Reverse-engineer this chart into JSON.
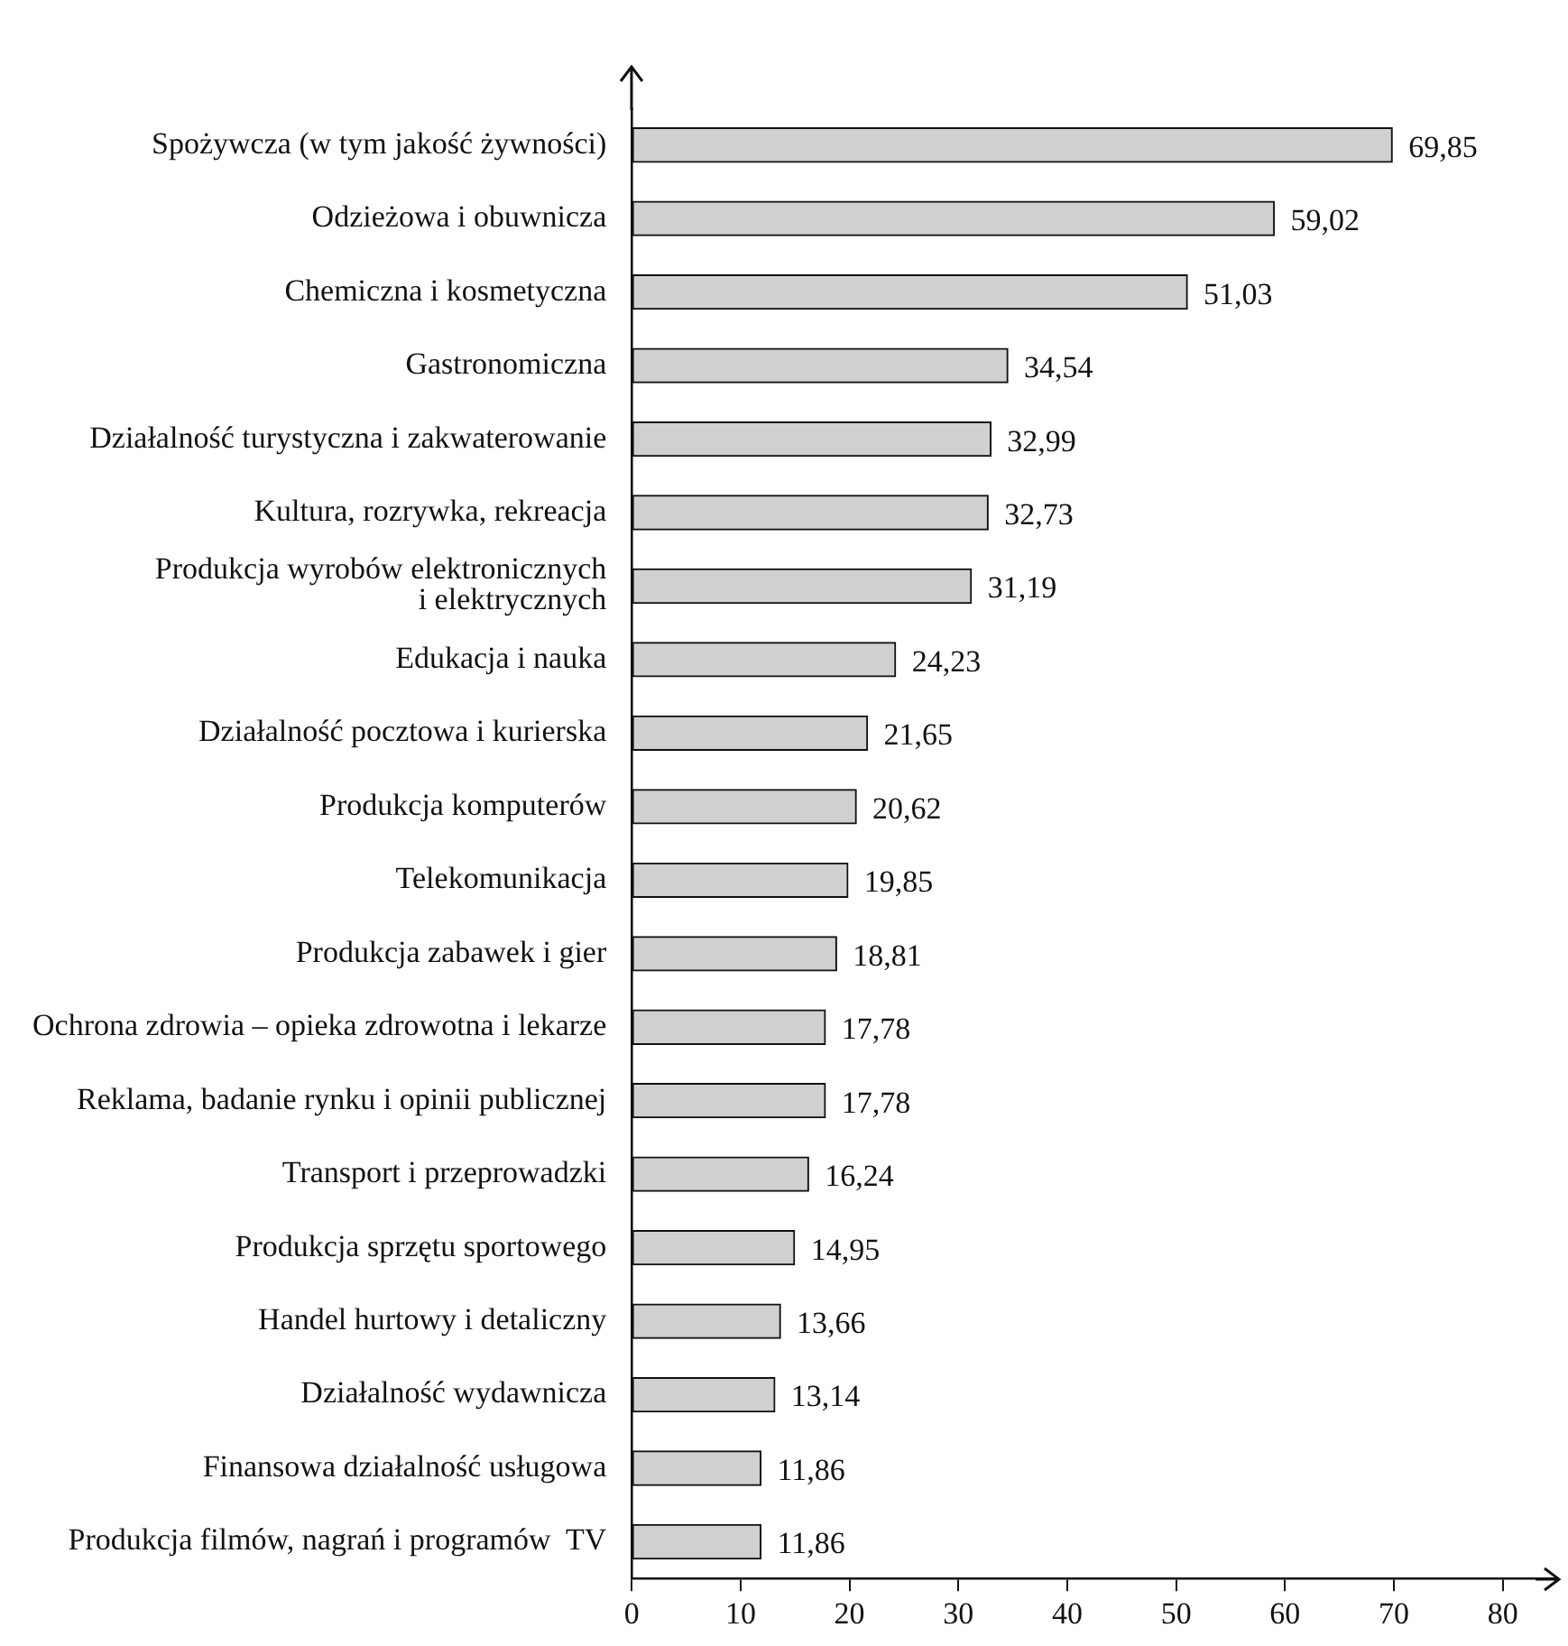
{
  "chart_data": {
    "type": "bar",
    "orientation": "horizontal",
    "categories": [
      "Spożywcza (w tym jakość żywności)",
      "Odzieżowa i obuwnicza",
      "Chemiczna i kosmetyczna",
      "Gastronomiczna",
      "Działalność turystyczna i zakwaterowanie",
      "Kultura, rozrywka, rekreacja",
      "Produkcja wyrobów elektronicznych\ni elektrycznych",
      "Edukacja i nauka",
      "Działalność pocztowa i kurierska",
      "Produkcja komputerów",
      "Telekomunikacja",
      "Produkcja zabawek i gier",
      "Ochrona zdrowia – opieka zdrowotna i lekarze",
      "Reklama, badanie rynku i opinii publicznej",
      "Transport i przeprowadzki",
      "Produkcja sprzętu sportowego",
      "Handel hurtowy i detaliczny",
      "Działalność wydawnicza",
      "Finansowa działalność usługowa",
      "Produkcja filmów, nagrań i programów  TV"
    ],
    "values": [
      69.85,
      59.02,
      51.03,
      34.54,
      32.99,
      32.73,
      31.19,
      24.23,
      21.65,
      20.62,
      19.85,
      18.81,
      17.78,
      17.78,
      16.24,
      14.95,
      13.66,
      13.14,
      11.86,
      11.86
    ],
    "value_labels": [
      "69,85",
      "59,02",
      "51,03",
      "34,54",
      "32,99",
      "32,73",
      "31,19",
      "24,23",
      "21,65",
      "20,62",
      "19,85",
      "18,81",
      "17,78",
      "17,78",
      "16,24",
      "14,95",
      "13,66",
      "13,14",
      "11,86",
      "11,86"
    ],
    "color": "#d0d0d0",
    "xlim": [
      0,
      85
    ],
    "xticks": [
      0,
      10,
      20,
      30,
      40,
      50,
      60,
      70,
      80
    ],
    "grid": false,
    "legend": false
  }
}
